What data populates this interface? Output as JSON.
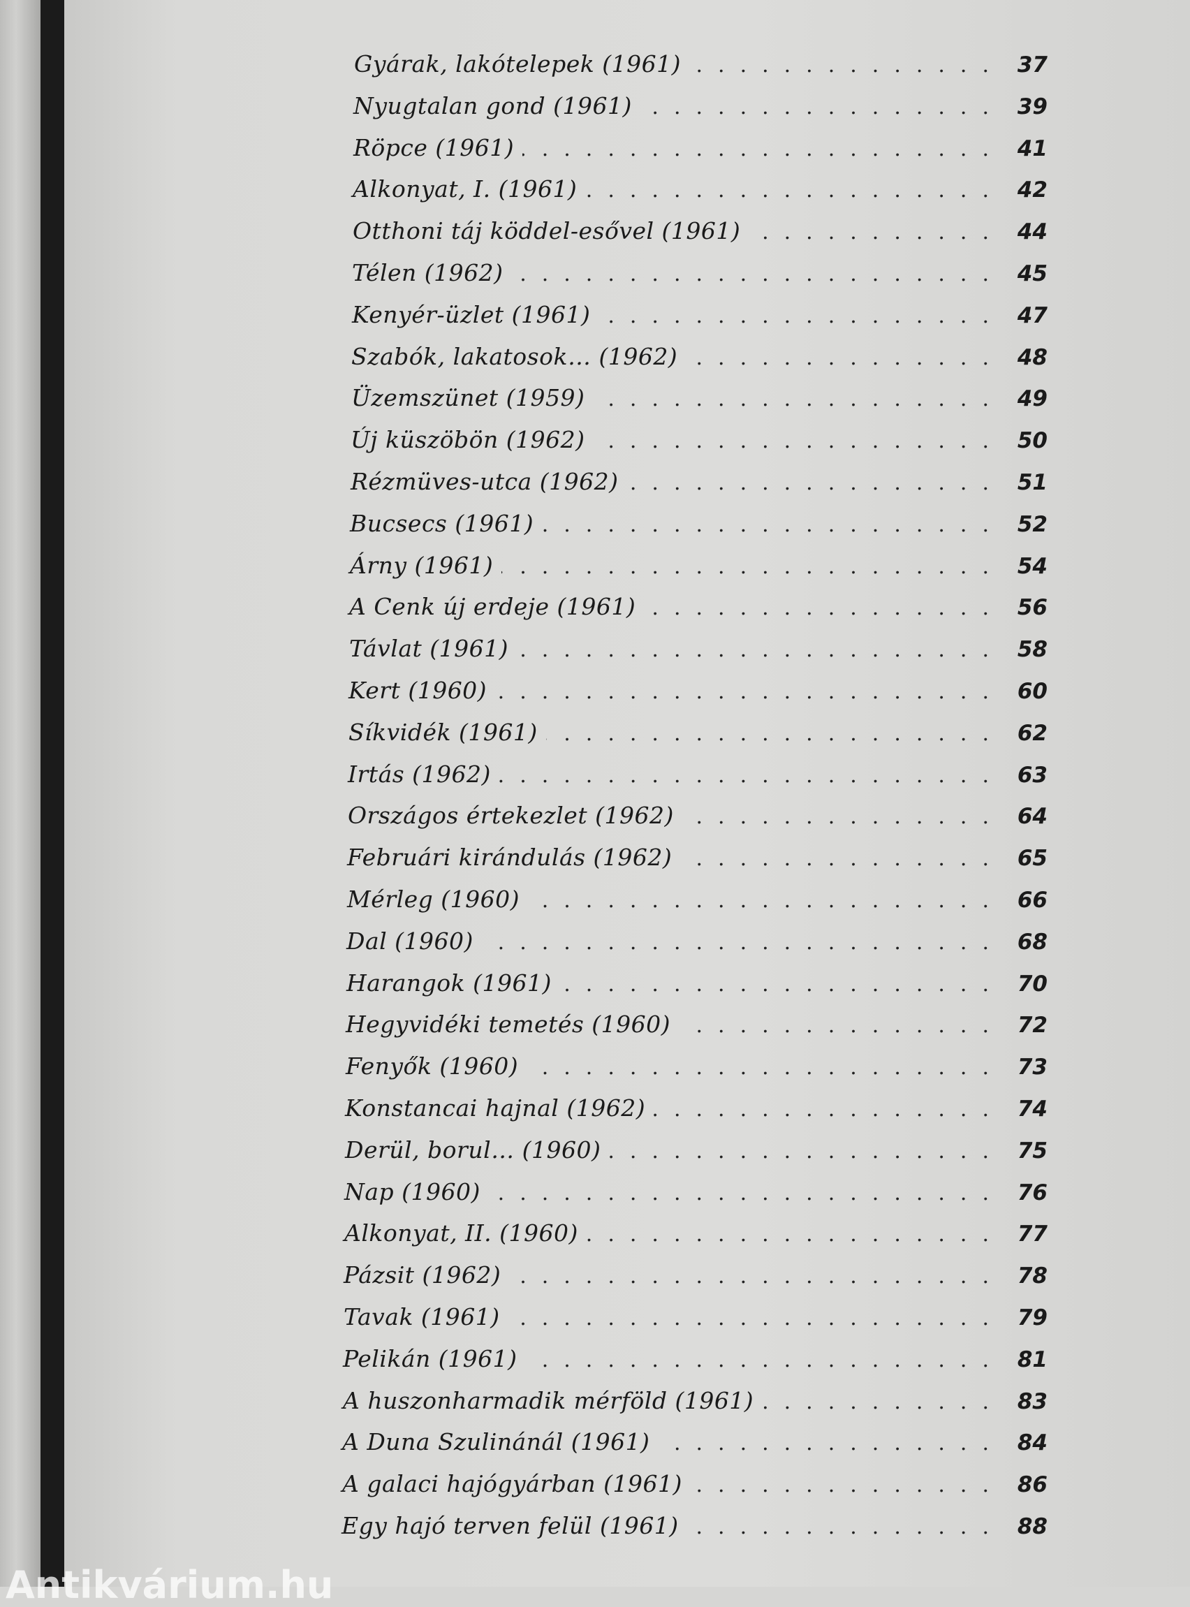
{
  "toc": {
    "entries": [
      {
        "title": "Gyárak, lakótelepek (1961)",
        "page": "37"
      },
      {
        "title": "Nyugtalan gond (1961)",
        "page": "39"
      },
      {
        "title": "Röpce (1961)",
        "page": "41"
      },
      {
        "title": "Alkonyat, I. (1961)",
        "page": "42"
      },
      {
        "title": "Otthoni táj köddel-esővel (1961)",
        "page": "44"
      },
      {
        "title": "Télen (1962)",
        "page": "45"
      },
      {
        "title": "Kenyér-üzlet (1961)",
        "page": "47"
      },
      {
        "title": "Szabók, lakatosok… (1962)",
        "page": "48"
      },
      {
        "title": "Üzemszünet (1959)",
        "page": "49"
      },
      {
        "title": "Új küszöbön (1962)",
        "page": "50"
      },
      {
        "title": "Rézmüves-utca (1962)",
        "page": "51"
      },
      {
        "title": "Bucsecs (1961)",
        "page": "52"
      },
      {
        "title": "Árny (1961)",
        "page": "54"
      },
      {
        "title": "A Cenk új erdeje (1961)",
        "page": "56"
      },
      {
        "title": "Távlat (1961)",
        "page": "58"
      },
      {
        "title": "Kert (1960)",
        "page": "60"
      },
      {
        "title": "Síkvidék (1961)",
        "page": "62"
      },
      {
        "title": "Irtás (1962)",
        "page": "63"
      },
      {
        "title": "Országos értekezlet (1962)",
        "page": "64"
      },
      {
        "title": "Februári kirándulás (1962)",
        "page": "65"
      },
      {
        "title": "Mérleg (1960)",
        "page": "66"
      },
      {
        "title": "Dal (1960)",
        "page": "68"
      },
      {
        "title": "Harangok (1961)",
        "page": "70"
      },
      {
        "title": "Hegyvidéki temetés (1960)",
        "page": "72"
      },
      {
        "title": "Fenyők (1960)",
        "page": "73"
      },
      {
        "title": "Konstancai hajnal (1962)",
        "page": "74"
      },
      {
        "title": "Derül, borul… (1960)",
        "page": "75"
      },
      {
        "title": "Nap (1960)",
        "page": "76"
      },
      {
        "title": "Alkonyat, II. (1960)",
        "page": "77"
      },
      {
        "title": "Pázsit (1962)",
        "page": "78"
      },
      {
        "title": "Tavak (1961)",
        "page": "79"
      },
      {
        "title": "Pelikán (1961)",
        "page": "81"
      },
      {
        "title": "A huszonharmadik mérföld (1961)",
        "page": "83"
      },
      {
        "title": "A Duna Szulinánál (1961)",
        "page": "84"
      },
      {
        "title": "A galaci hajógyárban (1961)",
        "page": "86"
      },
      {
        "title": "Egy hajó terven felül (1961)",
        "page": "88"
      }
    ]
  },
  "watermark": "Antikvárium.hu"
}
